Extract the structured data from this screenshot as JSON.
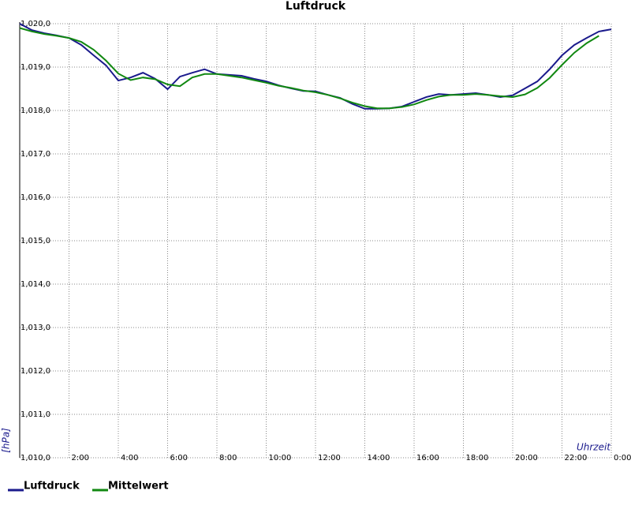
{
  "chart_data": {
    "type": "line",
    "title": "Luftdruck",
    "ylabel": "[hPa]",
    "xlabel": "Uhrzeit",
    "grid": true,
    "x": [
      0,
      0.5,
      1,
      1.5,
      2,
      2.5,
      3,
      3.5,
      4,
      4.5,
      5,
      5.5,
      6,
      6.5,
      7,
      7.5,
      8,
      8.5,
      9,
      9.5,
      10,
      10.5,
      11,
      11.5,
      12,
      12.5,
      13,
      13.5,
      14,
      14.5,
      15,
      15.5,
      16,
      16.5,
      17,
      17.5,
      18,
      18.5,
      19,
      19.5,
      20,
      20.5,
      21,
      21.5,
      22,
      22.5,
      23,
      23.5,
      24
    ],
    "series": [
      {
        "name": "Luftdruck",
        "color": "#1a1a8c",
        "values": [
          1020.0,
          1019.85,
          1019.78,
          1019.73,
          1019.67,
          1019.51,
          1019.27,
          1019.04,
          1018.69,
          1018.76,
          1018.87,
          1018.73,
          1018.49,
          1018.78,
          1018.87,
          1018.95,
          1018.84,
          1018.82,
          1018.8,
          1018.73,
          1018.67,
          1018.58,
          1018.51,
          1018.45,
          1018.44,
          1018.36,
          1018.29,
          1018.15,
          1018.04,
          1018.04,
          1018.05,
          1018.09,
          1018.2,
          1018.31,
          1018.38,
          1018.36,
          1018.38,
          1018.4,
          1018.36,
          1018.31,
          1018.35,
          1018.51,
          1018.67,
          1018.95,
          1019.27,
          1019.51,
          1019.67,
          1019.82,
          1019.87
        ]
      },
      {
        "name": "Mittelwert",
        "color": "#118811",
        "values": [
          1019.9,
          1019.82,
          1019.76,
          1019.72,
          1019.67,
          1019.58,
          1019.4,
          1019.15,
          1018.85,
          1018.7,
          1018.76,
          1018.72,
          1018.6,
          1018.56,
          1018.76,
          1018.84,
          1018.84,
          1018.8,
          1018.76,
          1018.7,
          1018.64,
          1018.57,
          1018.52,
          1018.46,
          1018.42,
          1018.36,
          1018.28,
          1018.18,
          1018.1,
          1018.05,
          1018.05,
          1018.08,
          1018.14,
          1018.24,
          1018.32,
          1018.36,
          1018.36,
          1018.38,
          1018.36,
          1018.33,
          1018.31,
          1018.37,
          1018.52,
          1018.75,
          1019.05,
          1019.33,
          1019.55,
          1019.72,
          null
        ]
      }
    ],
    "xlim": [
      0,
      24
    ],
    "xticks": [
      {
        "value": 2,
        "label": "2:00"
      },
      {
        "value": 4,
        "label": "4:00"
      },
      {
        "value": 6,
        "label": "6:00"
      },
      {
        "value": 8,
        "label": "8:00"
      },
      {
        "value": 10,
        "label": "10:00"
      },
      {
        "value": 12,
        "label": "12:00"
      },
      {
        "value": 14,
        "label": "14:00"
      },
      {
        "value": 16,
        "label": "16:00"
      },
      {
        "value": 18,
        "label": "18:00"
      },
      {
        "value": 20,
        "label": "20:00"
      },
      {
        "value": 22,
        "label": "22:00"
      },
      {
        "value": 24,
        "label": "0:00"
      }
    ],
    "ylim": [
      1010,
      1020
    ],
    "yticks": [
      {
        "value": 1010,
        "label": "1,010,0"
      },
      {
        "value": 1011,
        "label": "1,011,0"
      },
      {
        "value": 1012,
        "label": "1,012,0"
      },
      {
        "value": 1013,
        "label": "1,013,0"
      },
      {
        "value": 1014,
        "label": "1,014,0"
      },
      {
        "value": 1015,
        "label": "1,015,0"
      },
      {
        "value": 1016,
        "label": "1,016,0"
      },
      {
        "value": 1017,
        "label": "1,017,0"
      },
      {
        "value": 1018,
        "label": "1,018,0"
      },
      {
        "value": 1019,
        "label": "1,019,0"
      },
      {
        "value": 1020,
        "label": "1,020,0"
      }
    ]
  }
}
